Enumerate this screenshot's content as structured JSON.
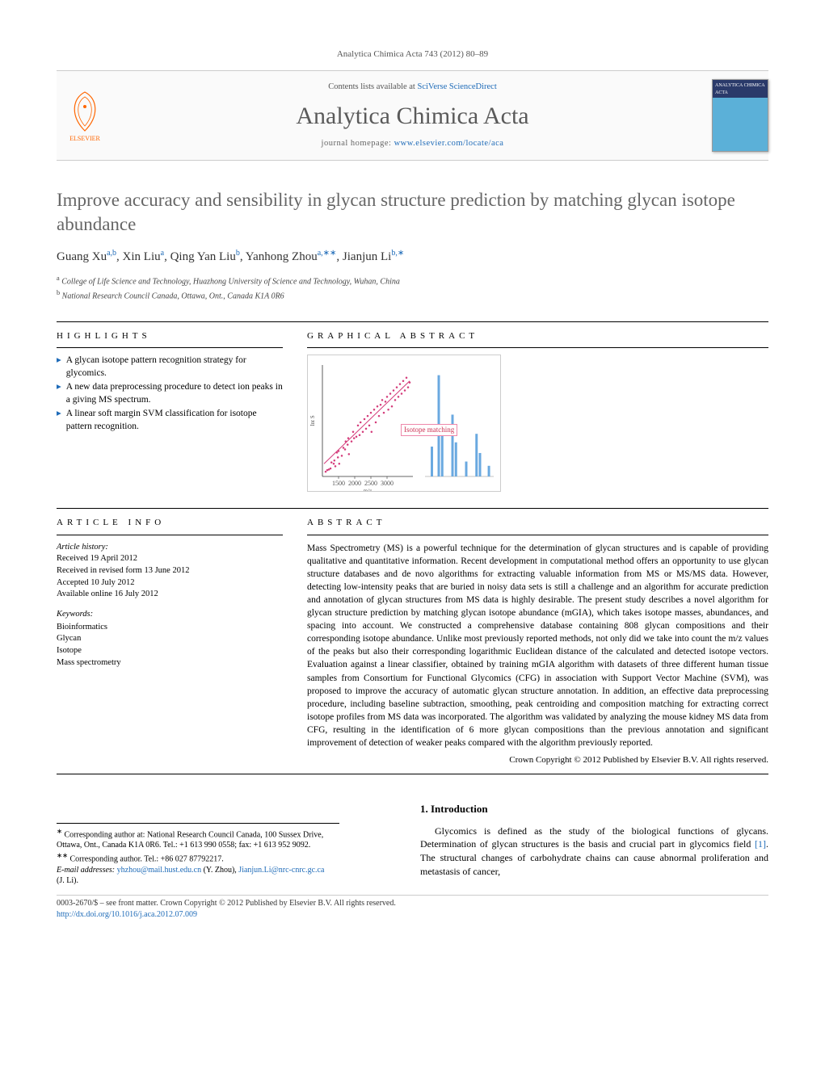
{
  "journal_ref": "Analytica Chimica Acta 743 (2012) 80–89",
  "header": {
    "contents_prefix": "Contents lists available at ",
    "contents_link": "SciVerse ScienceDirect",
    "journal_name": "Analytica Chimica Acta",
    "homepage_prefix": "journal homepage: ",
    "homepage_link": "www.elsevier.com/locate/aca",
    "publisher_label": "ELSEVIER",
    "cover_text": "ANALYTICA CHIMICA ACTA"
  },
  "title": "Improve accuracy and sensibility in glycan structure prediction by matching glycan isotope abundance",
  "authors_html": [
    {
      "name": "Guang Xu",
      "aff": "a,b"
    },
    {
      "name": "Xin Liu",
      "aff": "a"
    },
    {
      "name": "Qing Yan Liu",
      "aff": "b"
    },
    {
      "name": "Yanhong Zhou",
      "aff": "a,∗∗"
    },
    {
      "name": "Jianjun Li",
      "aff": "b,∗"
    }
  ],
  "affiliations": [
    {
      "sup": "a",
      "text": "College of Life Science and Technology, Huazhong University of Science and Technology, Wuhan, China"
    },
    {
      "sup": "b",
      "text": "National Research Council Canada, Ottawa, Ont., Canada K1A 0R6"
    }
  ],
  "headings": {
    "highlights": "HIGHLIGHTS",
    "graphical": "GRAPHICAL ABSTRACT",
    "article_info": "ARTICLE INFO",
    "abstract": "ABSTRACT",
    "intro": "1. Introduction"
  },
  "highlights": [
    "A glycan isotope pattern recognition strategy for glycomics.",
    "A new data preprocessing procedure to detect ion peaks in a giving MS spectrum.",
    "A linear soft margin SVM classification for isotope pattern recognition."
  ],
  "article_info": {
    "history_heading": "Article history:",
    "history": [
      "Received 19 April 2012",
      "Received in revised form 13 June 2012",
      "Accepted 10 July 2012",
      "Available online 16 July 2012"
    ],
    "keywords_heading": "Keywords:",
    "keywords": [
      "Bioinformatics",
      "Glycan",
      "Isotope",
      "Mass spectrometry"
    ]
  },
  "graphical_abstract": {
    "type": "scatter_with_bars",
    "label": "Isotope matching",
    "scatter": {
      "xlim": [
        1000,
        3800
      ],
      "ylim": [
        0,
        35
      ],
      "xticks": [
        1500,
        2000,
        2500,
        3000
      ],
      "xlabel": "m/z",
      "ylabel": "Int S",
      "point_color": "#d43b7a",
      "point_size": 2.5,
      "trendline_color": "#d43b7a",
      "trendline": {
        "x1": 1050,
        "y1": 4,
        "x2": 3700,
        "y2": 30
      },
      "points": [
        [
          1100,
          1.5
        ],
        [
          1150,
          2.0
        ],
        [
          1200,
          2.2
        ],
        [
          1250,
          2.5
        ],
        [
          1280,
          4.4
        ],
        [
          1350,
          4.0
        ],
        [
          1370,
          5.0
        ],
        [
          1400,
          3.2
        ],
        [
          1450,
          7.5
        ],
        [
          1480,
          6.0
        ],
        [
          1500,
          8.0
        ],
        [
          1520,
          4.0
        ],
        [
          1600,
          6.5
        ],
        [
          1650,
          9.0
        ],
        [
          1700,
          8.5
        ],
        [
          1720,
          11.0
        ],
        [
          1780,
          10.0
        ],
        [
          1800,
          12.0
        ],
        [
          1820,
          7.0
        ],
        [
          1900,
          11.0
        ],
        [
          1950,
          14.0
        ],
        [
          1980,
          12.0
        ],
        [
          2050,
          12.5
        ],
        [
          2100,
          16.0
        ],
        [
          2150,
          13.0
        ],
        [
          2180,
          17.0
        ],
        [
          2250,
          14.0
        ],
        [
          2300,
          18.0
        ],
        [
          2350,
          15.0
        ],
        [
          2400,
          19.0
        ],
        [
          2450,
          16.0
        ],
        [
          2500,
          20.0
        ],
        [
          2520,
          14.0
        ],
        [
          2600,
          21.0
        ],
        [
          2650,
          17.0
        ],
        [
          2700,
          22.0
        ],
        [
          2750,
          19.0
        ],
        [
          2800,
          22.5
        ],
        [
          2850,
          24.0
        ],
        [
          2900,
          20.0
        ],
        [
          2950,
          23.5
        ],
        [
          3000,
          25.0
        ],
        [
          3040,
          21.0
        ],
        [
          3100,
          26.0
        ],
        [
          3150,
          22.0
        ],
        [
          3200,
          27.0
        ],
        [
          3250,
          24.0
        ],
        [
          3300,
          28.0
        ],
        [
          3350,
          25.0
        ],
        [
          3400,
          29.0
        ],
        [
          3450,
          26.0
        ],
        [
          3500,
          30.0
        ],
        [
          3550,
          27.0
        ],
        [
          3600,
          31.0
        ],
        [
          3650,
          28.0
        ],
        [
          3700,
          29.5
        ]
      ],
      "axis_color": "#333",
      "tick_fontsize": 8
    },
    "bars": {
      "xlim": [
        0,
        10
      ],
      "ylim": [
        0,
        100
      ],
      "color": "#6aa9e0",
      "width": 0.35,
      "values": [
        {
          "x": 1.0,
          "h": 28
        },
        {
          "x": 2.0,
          "h": 95
        },
        {
          "x": 2.5,
          "h": 45
        },
        {
          "x": 4.0,
          "h": 58
        },
        {
          "x": 4.5,
          "h": 32
        },
        {
          "x": 6.0,
          "h": 14
        },
        {
          "x": 7.5,
          "h": 40
        },
        {
          "x": 8.0,
          "h": 22
        },
        {
          "x": 9.3,
          "h": 10
        }
      ]
    },
    "background_color": "#ffffff",
    "border_color": "#cccccc"
  },
  "abstract": "Mass Spectrometry (MS) is a powerful technique for the determination of glycan structures and is capable of providing qualitative and quantitative information. Recent development in computational method offers an opportunity to use glycan structure databases and de novo algorithms for extracting valuable information from MS or MS/MS data. However, detecting low-intensity peaks that are buried in noisy data sets is still a challenge and an algorithm for accurate prediction and annotation of glycan structures from MS data is highly desirable. The present study describes a novel algorithm for glycan structure prediction by matching glycan isotope abundance (mGIA), which takes isotope masses, abundances, and spacing into account. We constructed a comprehensive database containing 808 glycan compositions and their corresponding isotope abundance. Unlike most previously reported methods, not only did we take into count the m/z values of the peaks but also their corresponding logarithmic Euclidean distance of the calculated and detected isotope vectors. Evaluation against a linear classifier, obtained by training mGIA algorithm with datasets of three different human tissue samples from Consortium for Functional Glycomics (CFG) in association with Support Vector Machine (SVM), was proposed to improve the accuracy of automatic glycan structure annotation. In addition, an effective data preprocessing procedure, including baseline subtraction, smoothing, peak centroiding and composition matching for extracting correct isotope profiles from MS data was incorporated. The algorithm was validated by analyzing the mouse kidney MS data from CFG, resulting in the identification of 6 more glycan compositions than the previous annotation and significant improvement of detection of weaker peaks compared with the algorithm previously reported.",
  "copyright": "Crown Copyright © 2012 Published by Elsevier B.V. All rights reserved.",
  "intro_text": "Glycomics is defined as the study of the biological functions of glycans. Determination of glycan structures is the basis and crucial part in glycomics field [1]. The structural changes of carbohydrate chains can cause abnormal proliferation and metastasis of cancer,",
  "intro_link": "[1]",
  "footnotes": {
    "corr1_sym": "∗",
    "corr1": "Corresponding author at: National Research Council Canada, 100 Sussex Drive, Ottawa, Ont., Canada K1A 0R6. Tel.: +1 613 990 0558; fax: +1 613 952 9092.",
    "corr2_sym": "∗∗",
    "corr2": "Corresponding author. Tel.: +86 027 87792217.",
    "email_label": "E-mail addresses: ",
    "email1": "yhzhou@mail.hust.edu.cn",
    "email1_name": " (Y. Zhou), ",
    "email2": "Jianjun.Li@nrc-cnrc.gc.ca",
    "email2_name": " (J. Li)."
  },
  "footer": {
    "issn": "0003-2670/$ – see front matter. Crown Copyright © 2012 Published by Elsevier B.V. All rights reserved.",
    "doi": "http://dx.doi.org/10.1016/j.aca.2012.07.009"
  },
  "colors": {
    "link": "#1e6bb8",
    "title_gray": "#666666",
    "publisher_orange": "#ff6600"
  }
}
